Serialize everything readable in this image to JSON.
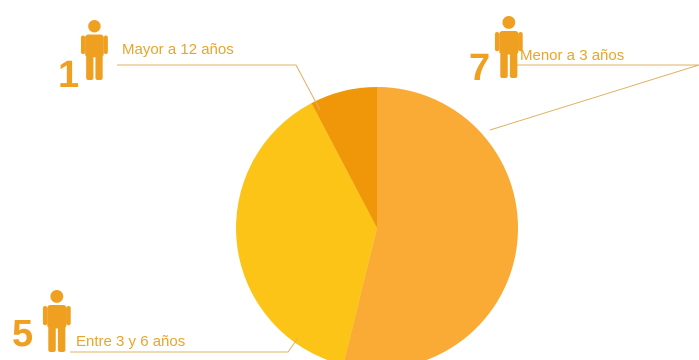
{
  "chart_data": {
    "type": "pie",
    "title": "",
    "slices": [
      {
        "label": "Menor a 3 años",
        "value": 7,
        "count_text": "7",
        "color": "#f9ab35"
      },
      {
        "label": "Entre 3 y 6 años",
        "value": 5,
        "count_text": "5",
        "color": "#fcc417"
      },
      {
        "label": "Mayor a 12 años",
        "value": 1,
        "count_text": "1",
        "color": "#ef9709"
      }
    ],
    "legend": "callouts",
    "icon": "person-icon"
  },
  "colors": {
    "label_text": "#e8a52b",
    "person_icon": "#f0a020",
    "leader_line": "#e0b060"
  }
}
